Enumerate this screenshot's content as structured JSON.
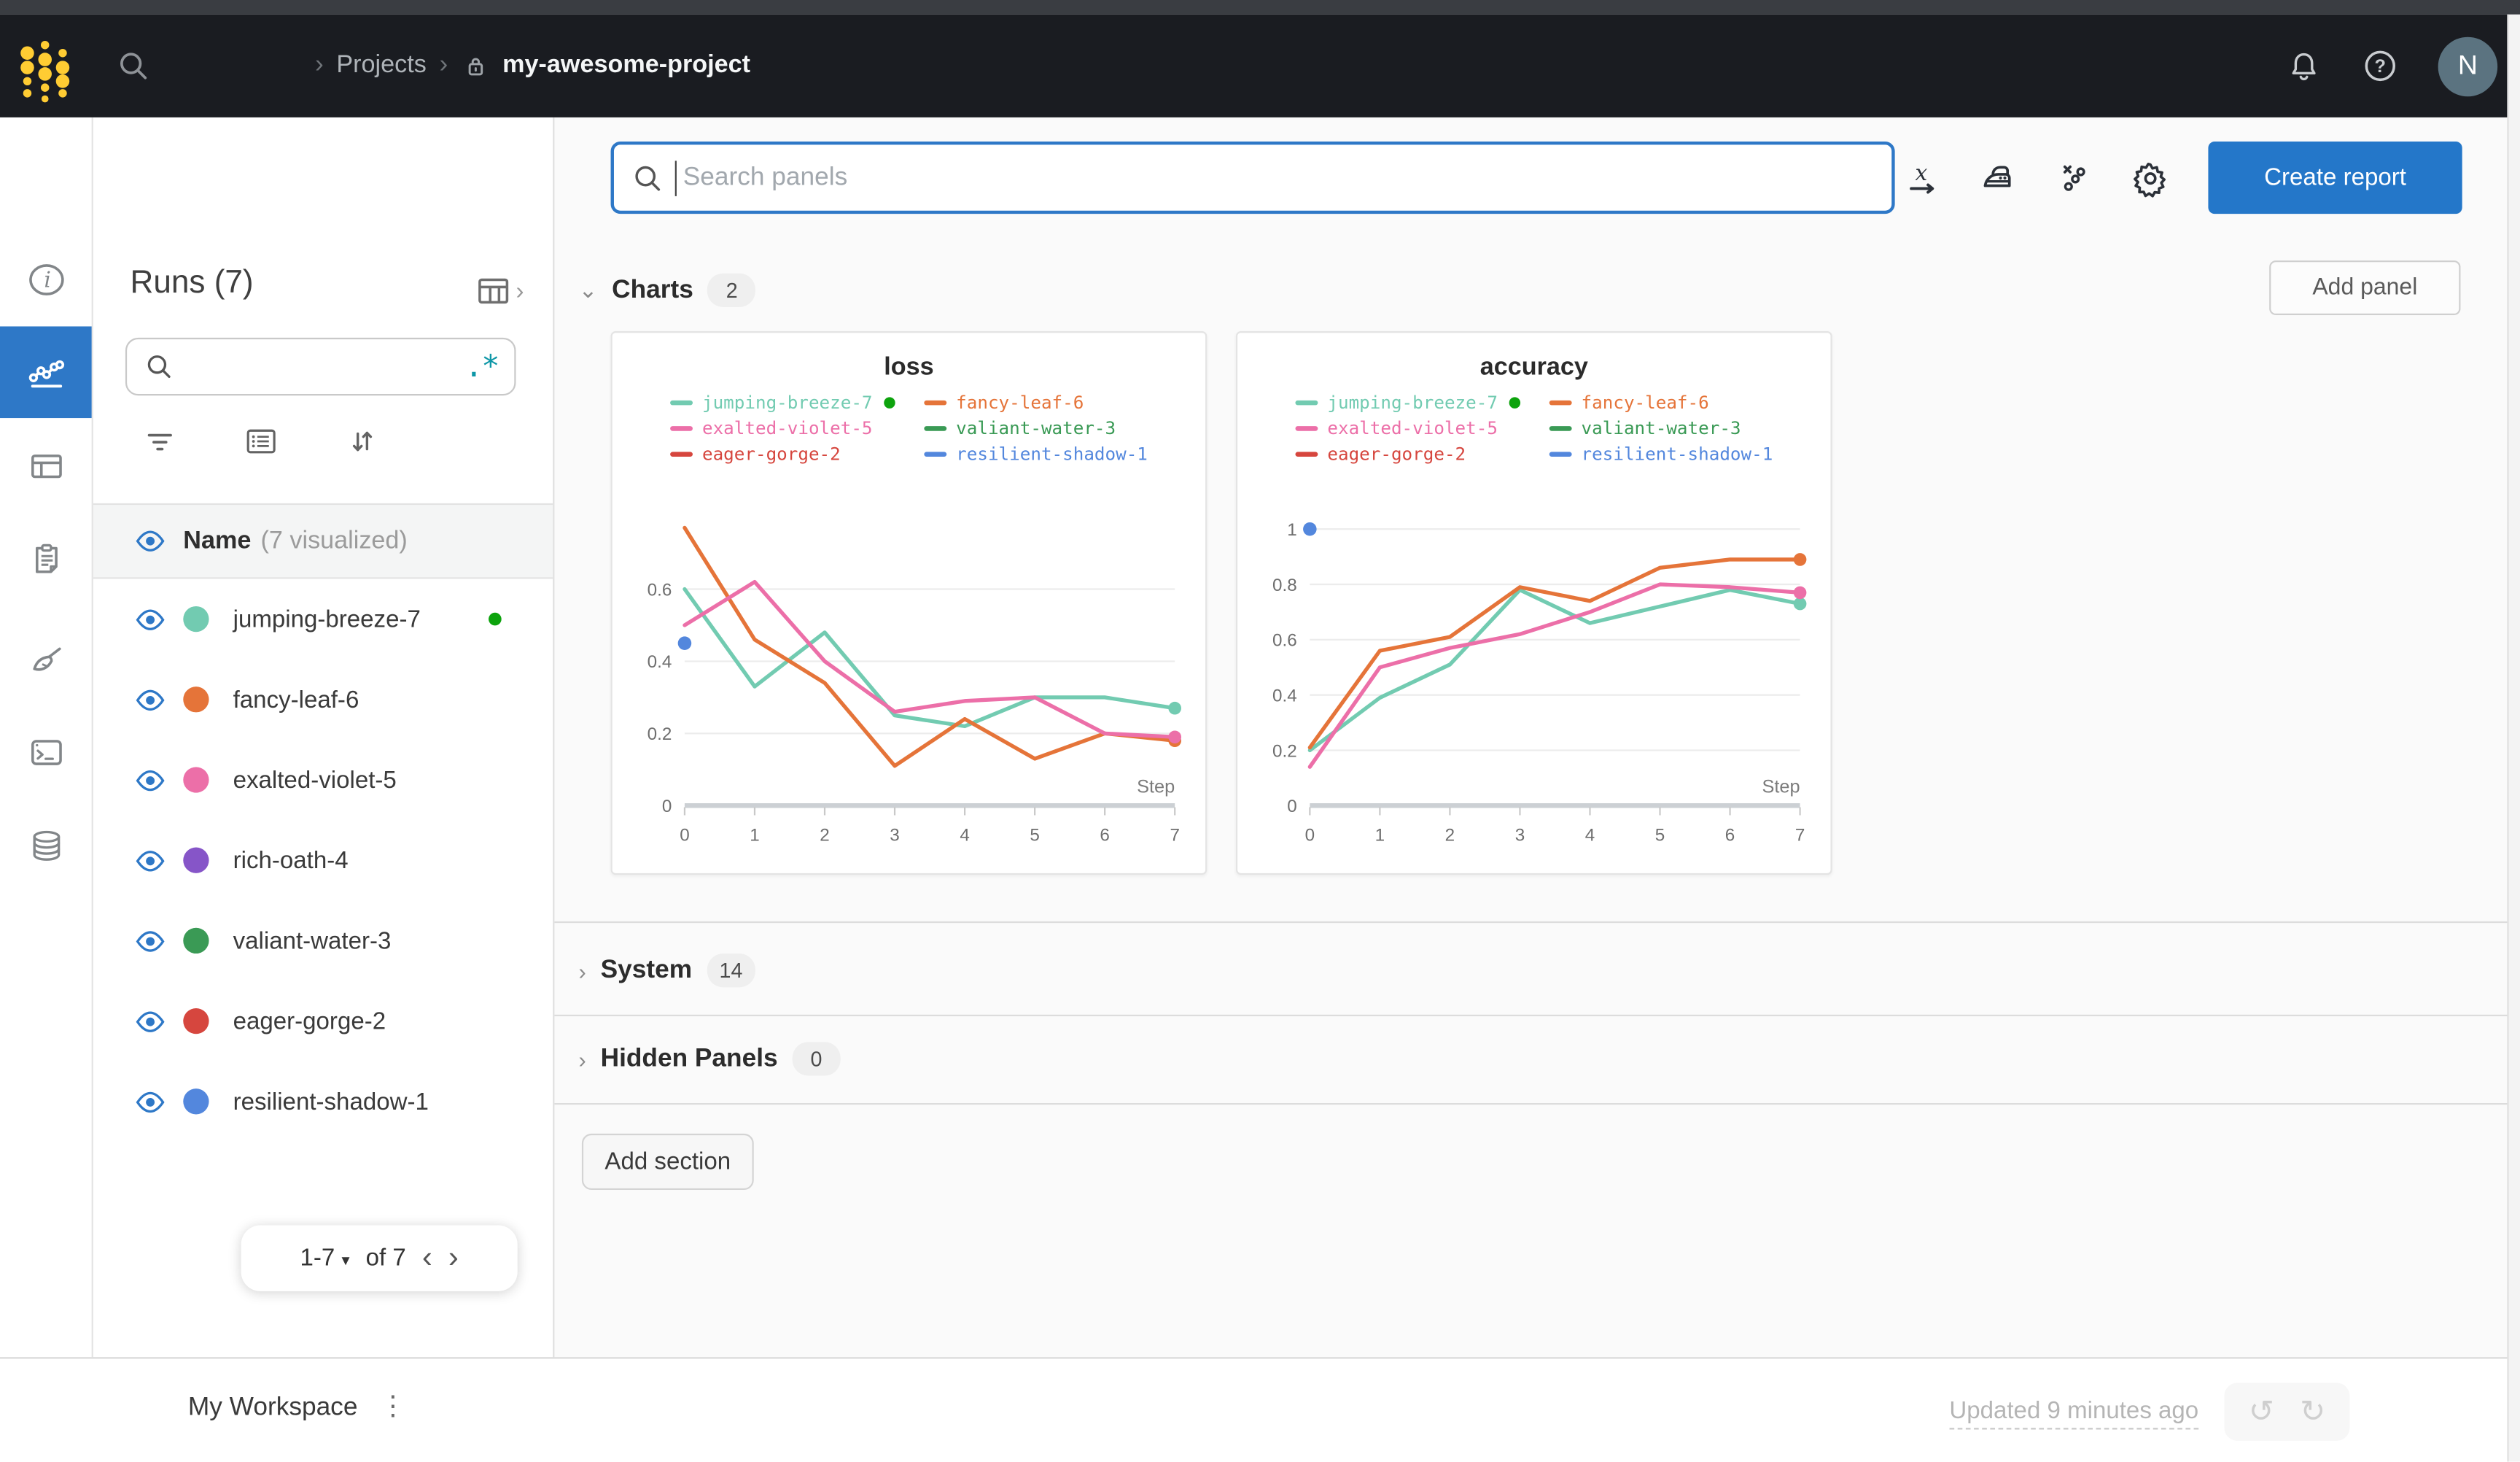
{
  "navbar": {
    "breadcrumb": {
      "separator": "›",
      "projects": "Projects",
      "project_name": "my-awesome-project"
    },
    "avatar_initial": "N",
    "icons": [
      "wandb-logo-dots",
      "search-icon",
      "lock-icon",
      "bell-icon",
      "help-icon"
    ]
  },
  "rail_icons": [
    "overview-info-icon",
    "workspace-line-chart-icon",
    "runs-table-icon",
    "reports-clipboard-icon",
    "sweeps-broom-icon",
    "logs-terminal-icon",
    "artifacts-database-icon"
  ],
  "runs_panel": {
    "title": "Runs (7)",
    "search_value": "",
    "regex_icon": ".*",
    "header": {
      "label": "Name",
      "sub": "(7 visualized)"
    },
    "runs": [
      {
        "name": "jumping-breeze-7",
        "color": "#72cbb1",
        "running": true
      },
      {
        "name": "fancy-leaf-6",
        "color": "#e57439",
        "running": false
      },
      {
        "name": "exalted-violet-5",
        "color": "#ec6fa8",
        "running": false
      },
      {
        "name": "rich-oath-4",
        "color": "#8655c8",
        "running": false
      },
      {
        "name": "valiant-water-3",
        "color": "#3a9a55",
        "running": false
      },
      {
        "name": "eager-gorge-2",
        "color": "#d6463e",
        "running": false
      },
      {
        "name": "resilient-shadow-1",
        "color": "#5387dd",
        "running": false
      }
    ],
    "pagination": {
      "range": "1-7",
      "of": "of 7"
    }
  },
  "main": {
    "search": {
      "placeholder": "Search panels"
    },
    "toolbar_icons": [
      "x-axis-icon",
      "smoothing-iron-icon",
      "outliers-icon",
      "settings-gear-icon"
    ],
    "create_report_label": "Create report",
    "add_panel_label": "Add panel",
    "sections": [
      {
        "label": "Charts",
        "count": "2"
      },
      {
        "label": "System",
        "count": "14"
      },
      {
        "label": "Hidden Panels",
        "count": "0"
      }
    ],
    "add_section_label": "Add section"
  },
  "footer": {
    "workspace_label": "My Workspace",
    "updated_text": "Updated 9 minutes ago"
  },
  "colors": {
    "accent_blue": "#2e78c7",
    "create_report_blue": "#2477c9",
    "navbar_bg": "#1a1c21",
    "logo_gold": "#ffcc33",
    "running_green": "#0da30d",
    "avatar_bg": "#5b7380"
  },
  "chart_data": [
    {
      "type": "line",
      "title": "loss",
      "xlabel": "Step",
      "x_ticks": [
        0,
        1,
        2,
        3,
        4,
        5,
        6,
        7
      ],
      "y_ticks": [
        0,
        0.2,
        0.4,
        0.6
      ],
      "ylim": [
        0,
        0.82
      ],
      "legend_position": "top",
      "grid": true,
      "running_dot_color": "#0da30d",
      "series": [
        {
          "name": "jumping-breeze-7",
          "color": "#72cbb1",
          "running": true,
          "end_dot": true,
          "x": [
            0,
            1,
            2,
            3,
            4,
            5,
            6,
            7
          ],
          "y": [
            0.6,
            0.33,
            0.48,
            0.25,
            0.22,
            0.3,
            0.3,
            0.27
          ]
        },
        {
          "name": "fancy-leaf-6",
          "color": "#e57439",
          "running": false,
          "end_dot": true,
          "x": [
            0,
            1,
            2,
            3,
            4,
            5,
            6,
            7
          ],
          "y": [
            0.77,
            0.46,
            0.34,
            0.11,
            0.24,
            0.13,
            0.2,
            0.18
          ]
        },
        {
          "name": "exalted-violet-5",
          "color": "#ec6fa8",
          "running": false,
          "end_dot": true,
          "x": [
            0,
            1,
            2,
            3,
            4,
            5,
            6,
            7
          ],
          "y": [
            0.5,
            0.62,
            0.4,
            0.26,
            0.29,
            0.3,
            0.2,
            0.19
          ]
        },
        {
          "name": "valiant-water-3",
          "color": "#3a9a55",
          "running": false,
          "end_dot": false,
          "x": [],
          "y": []
        },
        {
          "name": "eager-gorge-2",
          "color": "#d6463e",
          "running": false,
          "end_dot": false,
          "x": [],
          "y": []
        },
        {
          "name": "resilient-shadow-1",
          "color": "#5387dd",
          "running": false,
          "end_dot": true,
          "x": [
            0
          ],
          "y": [
            0.45
          ]
        }
      ]
    },
    {
      "type": "line",
      "title": "accuracy",
      "xlabel": "Step",
      "x_ticks": [
        0,
        1,
        2,
        3,
        4,
        5,
        6,
        7
      ],
      "y_ticks": [
        0,
        0.2,
        0.4,
        0.6,
        0.8,
        1
      ],
      "ylim": [
        0,
        1.07
      ],
      "legend_position": "top",
      "grid": true,
      "running_dot_color": "#0da30d",
      "series": [
        {
          "name": "jumping-breeze-7",
          "color": "#72cbb1",
          "running": true,
          "end_dot": true,
          "x": [
            0,
            1,
            2,
            3,
            4,
            5,
            6,
            7
          ],
          "y": [
            0.2,
            0.39,
            0.51,
            0.78,
            0.66,
            0.72,
            0.78,
            0.73
          ]
        },
        {
          "name": "fancy-leaf-6",
          "color": "#e57439",
          "running": false,
          "end_dot": true,
          "x": [
            0,
            1,
            2,
            3,
            4,
            5,
            6,
            7
          ],
          "y": [
            0.21,
            0.56,
            0.61,
            0.79,
            0.74,
            0.86,
            0.89,
            0.89
          ]
        },
        {
          "name": "exalted-violet-5",
          "color": "#ec6fa8",
          "running": false,
          "end_dot": true,
          "x": [
            0,
            1,
            2,
            3,
            4,
            5,
            6,
            7
          ],
          "y": [
            0.14,
            0.5,
            0.57,
            0.62,
            0.7,
            0.8,
            0.79,
            0.77
          ]
        },
        {
          "name": "valiant-water-3",
          "color": "#3a9a55",
          "running": false,
          "end_dot": false,
          "x": [],
          "y": []
        },
        {
          "name": "eager-gorge-2",
          "color": "#d6463e",
          "running": false,
          "end_dot": false,
          "x": [],
          "y": []
        },
        {
          "name": "resilient-shadow-1",
          "color": "#5387dd",
          "running": false,
          "end_dot": true,
          "x": [
            0
          ],
          "y": [
            1.0
          ]
        }
      ]
    }
  ]
}
